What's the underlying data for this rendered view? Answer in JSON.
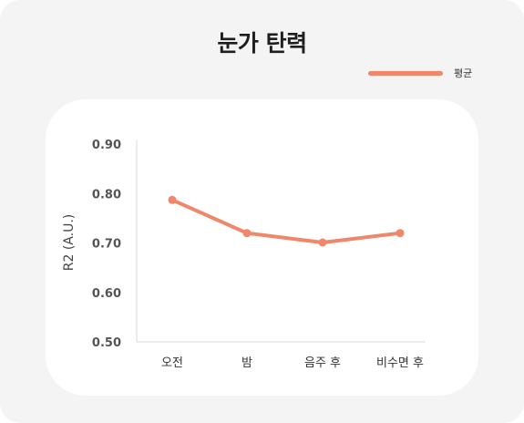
{
  "title": "눈가 탄력",
  "legend": {
    "label": "평균"
  },
  "colors": {
    "series": "#f0866a",
    "axis": "#e0e0e0",
    "background": "#f4f4f4",
    "card": "#ffffff"
  },
  "chart_data": {
    "type": "line",
    "title": "눈가 탄력",
    "xlabel": "",
    "ylabel": "R2 (A.U.)",
    "categories": [
      "오전",
      "밤",
      "음주 후",
      "비수면 후"
    ],
    "series": [
      {
        "name": "평균",
        "values": [
          0.787,
          0.72,
          0.701,
          0.72
        ]
      }
    ],
    "ylim": [
      0.5,
      0.9
    ],
    "yticks": [
      "0.90",
      "0.80",
      "0.70",
      "0.60",
      "0.50"
    ],
    "grid": false,
    "legend_position": "top-right"
  }
}
